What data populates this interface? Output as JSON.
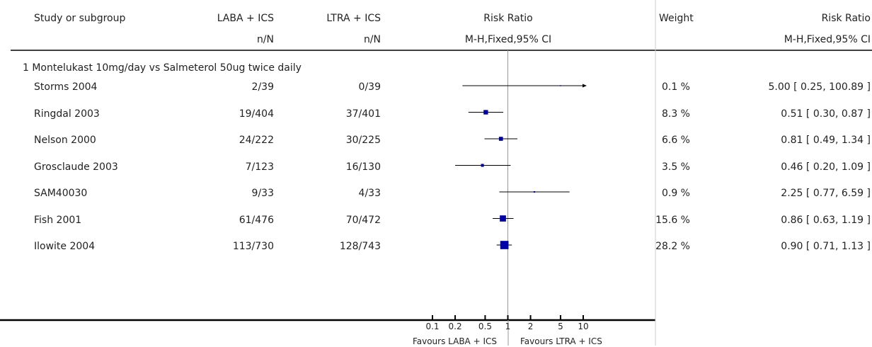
{
  "header": {
    "study_col": "Study or subgroup",
    "group1": "LABA + ICS",
    "group1_sub": "n/N",
    "group2": "LTRA + ICS",
    "group2_sub": "n/N",
    "plot_title": "Risk Ratio",
    "plot_sub": "M-H,Fixed,95% CI",
    "weight": "Weight",
    "rr_title": "Risk Ratio",
    "rr_sub": "M-H,Fixed,95% CI"
  },
  "subgroup_label": "1 Montelukast 10mg/day vs Salmeterol 50ug twice daily",
  "footer": {
    "favours_left": "Favours LABA + ICS",
    "favours_right": "Favours LTRA + ICS"
  },
  "colors": {
    "marker": "#0000aa",
    "line": "#000000",
    "axis": "#999999"
  },
  "chart_data": {
    "type": "forest",
    "x_scale": "log",
    "xlim": [
      0.1,
      10
    ],
    "ticks": [
      "0.1",
      "0.2",
      "0.5",
      "1",
      "2",
      "5",
      "10"
    ],
    "tick_values": [
      0.1,
      0.2,
      0.5,
      1,
      2,
      5,
      10
    ],
    "studies": [
      {
        "name": "Storms 2004",
        "g1": "2/39",
        "g2": "0/39",
        "weight_text": "0.1 %",
        "weight": 0.1,
        "rr_text": "5.00 [ 0.25, 100.89 ]",
        "rr": 5.0,
        "lo": 0.25,
        "hi": 100.89
      },
      {
        "name": "Ringdal 2003",
        "g1": "19/404",
        "g2": "37/401",
        "weight_text": "8.3 %",
        "weight": 8.3,
        "rr_text": "0.51 [ 0.30, 0.87 ]",
        "rr": 0.51,
        "lo": 0.3,
        "hi": 0.87
      },
      {
        "name": "Nelson 2000",
        "g1": "24/222",
        "g2": "30/225",
        "weight_text": "6.6 %",
        "weight": 6.6,
        "rr_text": "0.81 [ 0.49, 1.34 ]",
        "rr": 0.81,
        "lo": 0.49,
        "hi": 1.34
      },
      {
        "name": "Grosclaude 2003",
        "g1": "7/123",
        "g2": "16/130",
        "weight_text": "3.5 %",
        "weight": 3.5,
        "rr_text": "0.46 [ 0.20, 1.09 ]",
        "rr": 0.46,
        "lo": 0.2,
        "hi": 1.09
      },
      {
        "name": "SAM40030",
        "g1": "9/33",
        "g2": "4/33",
        "weight_text": "0.9 %",
        "weight": 0.9,
        "rr_text": "2.25 [ 0.77, 6.59 ]",
        "rr": 2.25,
        "lo": 0.77,
        "hi": 6.59
      },
      {
        "name": "Fish 2001",
        "g1": "61/476",
        "g2": "70/472",
        "weight_text": "15.6 %",
        "weight": 15.6,
        "rr_text": "0.86 [ 0.63, 1.19 ]",
        "rr": 0.86,
        "lo": 0.63,
        "hi": 1.19
      },
      {
        "name": "Ilowite 2004",
        "g1": "113/730",
        "g2": "128/743",
        "weight_text": "28.2 %",
        "weight": 28.2,
        "rr_text": "0.90 [ 0.71, 1.13 ]",
        "rr": 0.9,
        "lo": 0.71,
        "hi": 1.13
      }
    ]
  }
}
